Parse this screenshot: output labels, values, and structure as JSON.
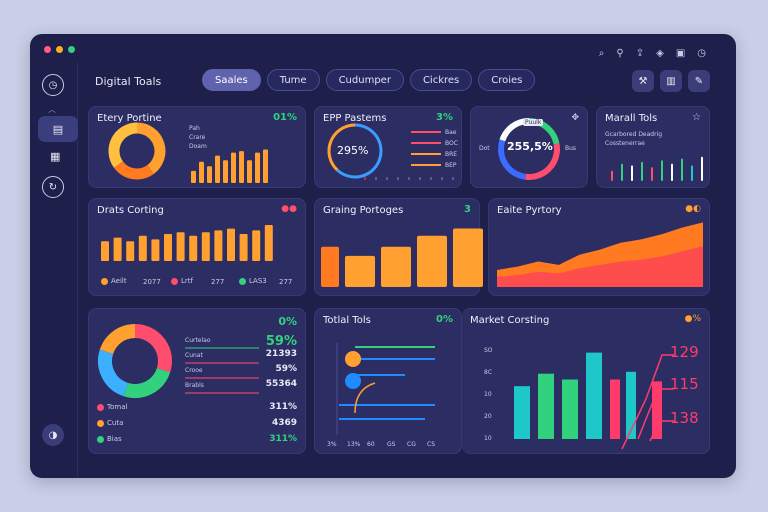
{
  "window": {
    "dot_colors": [
      "#ff5c8a",
      "#ffb020",
      "#31d17e"
    ],
    "top_icons": [
      "search-icon",
      "pin-icon",
      "share-icon",
      "tag-icon",
      "window-icon",
      "clock-icon"
    ]
  },
  "sidebar": {
    "items": [
      "clock-icon",
      "briefcase-icon",
      "folders-icon",
      "refresh-icon",
      "user-icon"
    ]
  },
  "header": {
    "title": "Digital Toals",
    "tabs": [
      {
        "label": "Saales",
        "active": true
      },
      {
        "label": "Tume",
        "active": false
      },
      {
        "label": "Cudumper",
        "active": false
      },
      {
        "label": "Cickres",
        "active": false
      },
      {
        "label": "Croies",
        "active": false
      }
    ],
    "buttons": [
      "gavel-icon",
      "chart-icon",
      "pen-icon"
    ]
  },
  "cards": {
    "c1": {
      "title": "Etery Portine",
      "value": "01%",
      "labels": [
        "Pah",
        "Crare",
        "Doam"
      ]
    },
    "c2": {
      "title": "EPP Pastems",
      "value": "3%",
      "center": "295%",
      "legend": [
        "Bae",
        "BOC",
        "BRE",
        "BEP"
      ]
    },
    "c3": {
      "title": "Puulk",
      "center": "255,5%",
      "left": "Dot",
      "right": "Bus"
    },
    "c4": {
      "title": "Marall Tols",
      "sub1": "Gcarbored Deadrig",
      "sub2": "Cosstenerrae"
    },
    "c5": {
      "title": "Drats Corting",
      "legend": [
        "Aeilt",
        "2077",
        "Lrtf",
        "277",
        "LAS3",
        "277"
      ]
    },
    "c6": {
      "title": "Graing Portoges",
      "value": "3"
    },
    "c7": {
      "title": "Eaite Pyrtory"
    },
    "c8": {
      "percent": "0%",
      "rows": [
        {
          "label": "Curtelao",
          "value": "59%",
          "color": "#31d17e"
        },
        {
          "label": "Cunat",
          "value": "21393",
          "color": "#e8e9f5"
        },
        {
          "label": "Crooe",
          "value": "59%",
          "color": "#e8e9f5"
        },
        {
          "label": "Brabls",
          "value": "55364",
          "color": "#e8e9f5"
        }
      ],
      "legend": [
        {
          "label": "Tomal",
          "value": "311%",
          "color": "#ff4d6d"
        },
        {
          "label": "Cuta",
          "value": "4369",
          "color": "#ffa030"
        },
        {
          "label": "Bias",
          "value": "311%",
          "color": "#31d17e"
        }
      ]
    },
    "c9": {
      "title": "Totlal Tols",
      "value": "0%",
      "y_labels": [
        "3%",
        "13%",
        "60",
        "GS",
        "CG",
        "CS"
      ]
    },
    "c10": {
      "title": "Market Corsting",
      "right_values": [
        "129",
        "115",
        "138"
      ],
      "y_labels": [
        "SO",
        "8C",
        "10",
        "20",
        "10"
      ]
    }
  },
  "chart_data": [
    {
      "type": "pie",
      "title": "Etery Portine",
      "values": [
        40,
        25,
        35
      ],
      "colors": [
        "#ffa030",
        "#ff7a20",
        "#ffc040"
      ]
    },
    {
      "type": "bar",
      "title": "Etery Portine",
      "values": [
        16,
        28,
        22,
        36,
        30,
        40,
        42,
        30,
        40,
        44
      ]
    },
    {
      "type": "pie",
      "title": "EPP Pastems",
      "values": [
        62,
        38
      ],
      "colors": [
        "#3b9bff",
        "#ffa030"
      ]
    },
    {
      "type": "pie",
      "title": "Puulk",
      "values": [
        22,
        30,
        28,
        20
      ],
      "colors": [
        "#31d17e",
        "#ff4d6d",
        "#3b6bff",
        "#ffffff"
      ]
    },
    {
      "type": "bar",
      "title": "Marall Tols",
      "values": [
        12,
        20,
        18,
        22,
        16,
        24,
        20,
        26,
        18,
        28
      ]
    },
    {
      "type": "bar",
      "title": "Drats Corting",
      "values": [
        22,
        26,
        22,
        28,
        24,
        30,
        32,
        28,
        32,
        34,
        36,
        30,
        34,
        40
      ]
    },
    {
      "type": "bar",
      "title": "Graing Portoges",
      "values": [
        44,
        34,
        44,
        56,
        64
      ]
    },
    {
      "type": "area",
      "title": "Eaite Pyrtory",
      "series": [
        {
          "values": [
            20,
            24,
            30,
            26,
            38,
            44,
            52,
            56,
            62,
            70,
            76
          ]
        },
        {
          "values": [
            12,
            14,
            18,
            16,
            22,
            26,
            30,
            32,
            36,
            42,
            48
          ]
        }
      ]
    },
    {
      "type": "pie",
      "values": [
        30,
        25,
        25,
        20
      ],
      "colors": [
        "#ff4d6d",
        "#31d17e",
        "#3bb0ff",
        "#ffa030"
      ]
    },
    {
      "type": "bar",
      "title": "Market Corsting",
      "values": [
        55,
        68,
        62,
        90,
        62,
        70,
        60
      ],
      "colors": [
        "#1ec8c8",
        "#31d17e",
        "#31d17e",
        "#1ec8c8",
        "#ff3b6b",
        "#1ec8c8",
        "#ff3b6b"
      ]
    }
  ]
}
